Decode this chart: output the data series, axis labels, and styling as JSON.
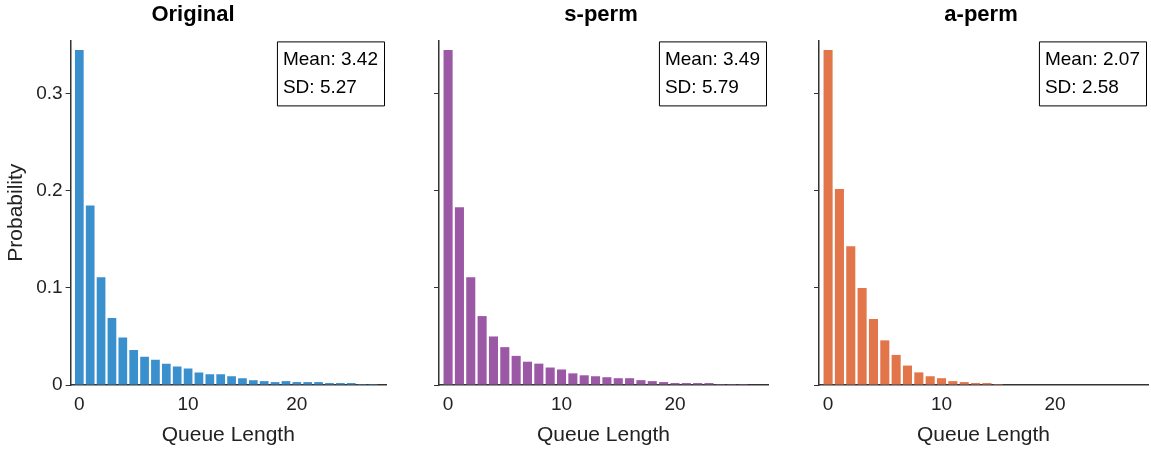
{
  "chart_data": [
    {
      "type": "bar",
      "title": "Original",
      "xlabel": "Queue Length",
      "ylabel": "Probability",
      "color": "#3a8fcd",
      "x": [
        0,
        1,
        2,
        3,
        4,
        5,
        6,
        7,
        8,
        9,
        10,
        11,
        12,
        13,
        14,
        15,
        16,
        17,
        18,
        19,
        20,
        21,
        22,
        23,
        24,
        25,
        26,
        27
      ],
      "values": [
        0.345,
        0.185,
        0.111,
        0.069,
        0.049,
        0.036,
        0.029,
        0.026,
        0.022,
        0.019,
        0.017,
        0.013,
        0.011,
        0.011,
        0.009,
        0.007,
        0.005,
        0.004,
        0.003,
        0.004,
        0.003,
        0.003,
        0.003,
        0.002,
        0.002,
        0.002,
        0.001,
        0.001
      ],
      "xlim": [
        -0.8,
        28.2
      ],
      "xticks": [
        0,
        10,
        20
      ],
      "ylim": [
        0,
        0.355
      ],
      "yticks": [
        0,
        0.1,
        0.2,
        0.3
      ],
      "annotations": [
        "Mean: 3.42",
        "SD: 5.27"
      ]
    },
    {
      "type": "bar",
      "title": "s-perm",
      "xlabel": "Queue Length",
      "color": "#9b58a5",
      "x": [
        0,
        1,
        2,
        3,
        4,
        5,
        6,
        7,
        8,
        9,
        10,
        11,
        12,
        13,
        14,
        15,
        16,
        17,
        18,
        19,
        20,
        21,
        22,
        23,
        24,
        25,
        26
      ],
      "values": [
        0.345,
        0.183,
        0.111,
        0.071,
        0.05,
        0.039,
        0.03,
        0.024,
        0.022,
        0.018,
        0.016,
        0.012,
        0.01,
        0.009,
        0.008,
        0.007,
        0.007,
        0.005,
        0.004,
        0.003,
        0.002,
        0.002,
        0.002,
        0.002,
        0.001,
        0.001,
        0.001
      ],
      "xlim": [
        -0.8,
        28.2
      ],
      "xticks": [
        0,
        10,
        20
      ],
      "ylim": [
        0,
        0.355
      ],
      "yticks": [
        0,
        0.1,
        0.2,
        0.3
      ],
      "tick_labels": "x",
      "annotations": [
        "Mean: 3.49",
        "SD: 5.79"
      ]
    },
    {
      "type": "bar",
      "title": "a-perm",
      "xlabel": "Queue Length",
      "color": "#e2764a",
      "x": [
        0,
        1,
        2,
        3,
        4,
        5,
        6,
        7,
        8,
        9,
        10,
        11,
        12,
        13,
        14,
        15
      ],
      "values": [
        0.345,
        0.202,
        0.143,
        0.1,
        0.068,
        0.046,
        0.031,
        0.02,
        0.013,
        0.009,
        0.007,
        0.004,
        0.003,
        0.002,
        0.002,
        0.001
      ],
      "xlim": [
        -0.8,
        28.2
      ],
      "xticks": [
        0,
        10,
        20
      ],
      "ylim": [
        0,
        0.355
      ],
      "yticks": [
        0,
        0.1,
        0.2,
        0.3
      ],
      "tick_labels": "x",
      "annotations": [
        "Mean: 2.07",
        "SD: 2.58"
      ]
    }
  ]
}
